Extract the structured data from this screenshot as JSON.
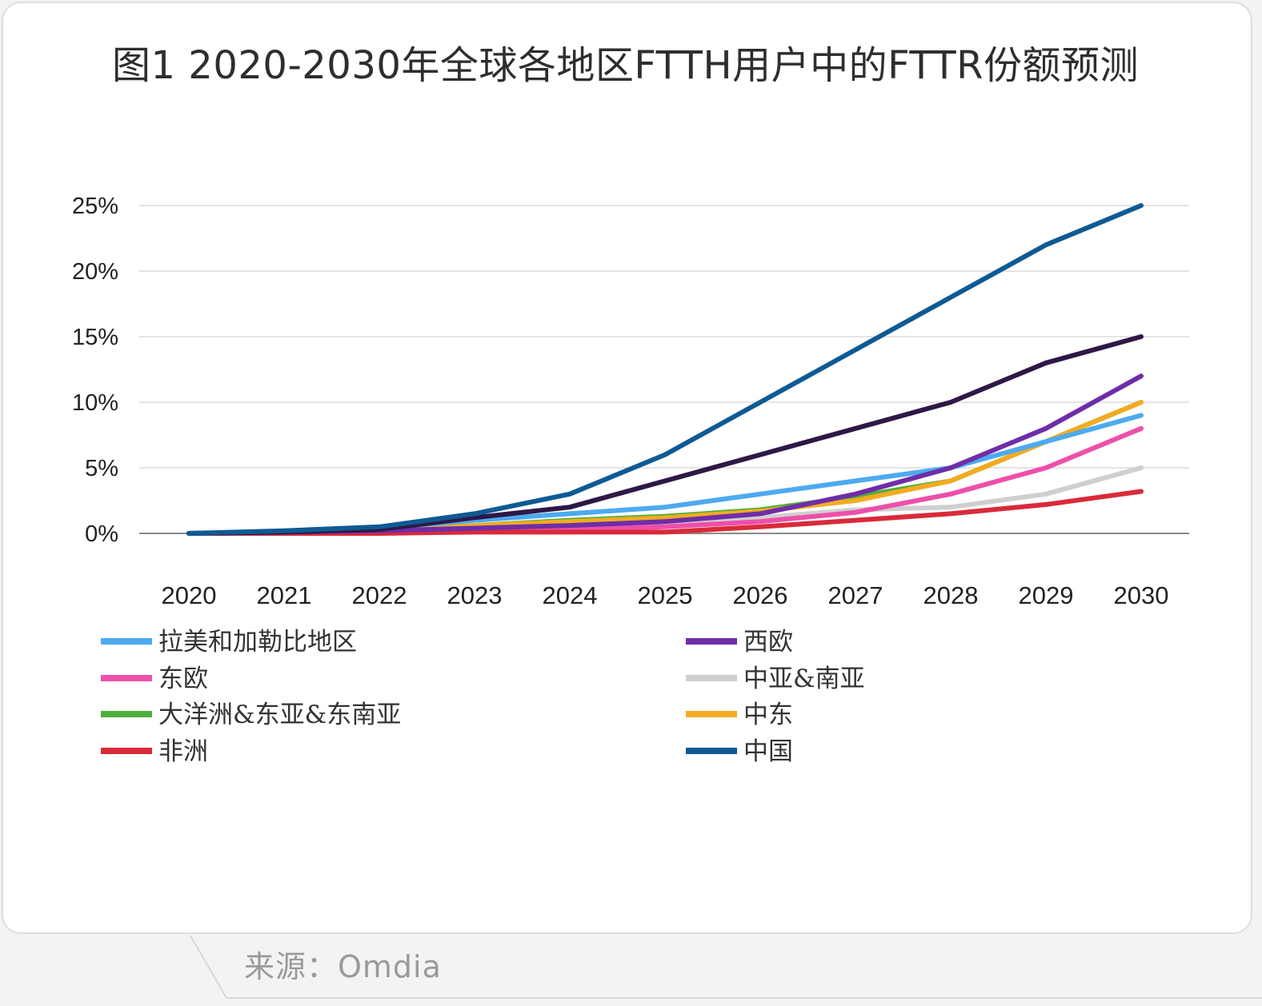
{
  "title": "图1  2020-2030年全球各地区FTTH用户中的FTTR份额预测",
  "source": "来源：Omdia",
  "chart_data": {
    "type": "line",
    "title": "图1  2020-2030年全球各地区FTTH用户中的FTTR份额预测",
    "xlabel": "",
    "ylabel": "",
    "ylim": [
      0,
      25
    ],
    "yticks": [
      0,
      5,
      10,
      15,
      20,
      25
    ],
    "ytick_labels": [
      "0%",
      "5%",
      "10%",
      "15%",
      "20%",
      "25%"
    ],
    "categories": [
      "2020",
      "2021",
      "2022",
      "2023",
      "2024",
      "2025",
      "2026",
      "2027",
      "2028",
      "2029",
      "2030"
    ],
    "grid": true,
    "legend_position": "bottom",
    "series": [
      {
        "name": "拉美和加勒比地区",
        "color": "#4daaf0",
        "values": [
          0,
          0.1,
          0.4,
          1.0,
          1.5,
          2.0,
          3.0,
          4.0,
          5.0,
          7.0,
          9.0
        ]
      },
      {
        "name": "西欧",
        "color": "#6f2da8",
        "values": [
          0,
          0.1,
          0.2,
          0.4,
          0.6,
          0.9,
          1.5,
          3.0,
          5.0,
          8.0,
          12.0
        ]
      },
      {
        "name": "东欧",
        "color": "#ee4fa9",
        "values": [
          0,
          0.0,
          0.1,
          0.2,
          0.3,
          0.5,
          0.9,
          1.6,
          3.0,
          5.0,
          8.0
        ]
      },
      {
        "name": "中亚&南亚",
        "color": "#cfcfcf",
        "values": [
          0,
          0.0,
          0.1,
          0.3,
          0.5,
          0.8,
          1.2,
          1.8,
          2.0,
          3.0,
          5.0
        ]
      },
      {
        "name": "大洋洲&东亚&东南亚",
        "color": "#4caf3c",
        "values": [
          0,
          0.1,
          0.3,
          0.6,
          1.0,
          1.3,
          1.8,
          2.8,
          4.0,
          7.0,
          10.0
        ]
      },
      {
        "name": "中东",
        "color": "#f2ab22",
        "values": [
          0,
          0.1,
          0.3,
          0.6,
          0.9,
          1.2,
          1.7,
          2.5,
          4.0,
          7.0,
          10.0
        ]
      },
      {
        "name": "非洲",
        "color": "#d92a3a",
        "values": [
          0,
          0.0,
          0.0,
          0.1,
          0.1,
          0.1,
          0.5,
          1.0,
          1.5,
          2.2,
          3.2
        ]
      },
      {
        "name": "中国",
        "color": "#0e5a94",
        "values": [
          0,
          0.2,
          0.5,
          1.5,
          3.0,
          6.0,
          10.0,
          14.0,
          18.0,
          22.0,
          25.0
        ]
      },
      {
        "name": "",
        "color": "#2e1847",
        "values": [
          0,
          0.1,
          0.3,
          1.2,
          2.0,
          4.0,
          6.0,
          8.0,
          10.0,
          13.0,
          15.0
        ]
      }
    ]
  }
}
